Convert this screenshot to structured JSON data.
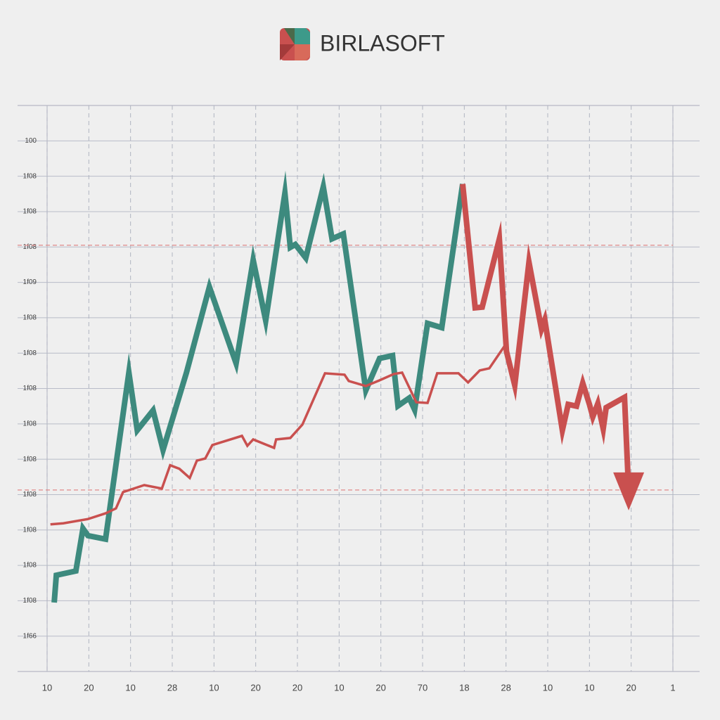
{
  "chart_data": {
    "type": "line",
    "title": "BIRLASOFT",
    "xlim": [
      0,
      15
    ],
    "xticks": [
      {
        "value": 0,
        "label": "10"
      },
      {
        "value": 1,
        "label": "20"
      },
      {
        "value": 2,
        "label": "10"
      },
      {
        "value": 3,
        "label": "28"
      },
      {
        "value": 4,
        "label": "10"
      },
      {
        "value": 5,
        "label": "20"
      },
      {
        "value": 6,
        "label": "20"
      },
      {
        "value": 7,
        "label": "10"
      },
      {
        "value": 8,
        "label": "20"
      },
      {
        "value": 9,
        "label": "70"
      },
      {
        "value": 10,
        "label": "18"
      },
      {
        "value": 11,
        "label": "28"
      },
      {
        "value": 12,
        "label": "10"
      },
      {
        "value": 13,
        "label": "10"
      },
      {
        "value": 14,
        "label": "20"
      },
      {
        "value": 15,
        "label": "1"
      }
    ],
    "ylim": [
      0,
      16
    ],
    "yticks": [
      {
        "value": 1,
        "label": "1f66"
      },
      {
        "value": 2,
        "label": "1f08"
      },
      {
        "value": 3,
        "label": "1f08"
      },
      {
        "value": 4,
        "label": "1f08"
      },
      {
        "value": 5,
        "label": "1f08"
      },
      {
        "value": 6,
        "label": "1f08"
      },
      {
        "value": 7,
        "label": "1f08"
      },
      {
        "value": 8,
        "label": "1f08"
      },
      {
        "value": 9,
        "label": "1f08"
      },
      {
        "value": 10,
        "label": "1f08"
      },
      {
        "value": 11,
        "label": "1f09"
      },
      {
        "value": 12,
        "label": "1f08"
      },
      {
        "value": 13,
        "label": "1f08"
      },
      {
        "value": 14,
        "label": "1f08"
      },
      {
        "value": 15,
        "label": "100"
      }
    ],
    "grid": true,
    "reference_lines": [
      12.05,
      5.13
    ],
    "reference_color": "#e08a8a",
    "series": [
      {
        "color": "#3d8a7e",
        "x": [
          0.17,
          0.22,
          0.69,
          0.86,
          0.98,
          1.4,
          1.96,
          2.16,
          2.54,
          2.78,
          3.34,
          3.89,
          4.53,
          4.94,
          5.24,
          5.7,
          5.83,
          5.95,
          6.2,
          6.62,
          6.83,
          7.1,
          7.64,
          7.97,
          8.28,
          8.41,
          8.68,
          8.81,
          9.12,
          9.46,
          9.96
        ],
        "values": [
          1.95,
          2.72,
          2.84,
          4.04,
          3.84,
          3.74,
          8.45,
          6.82,
          7.38,
          6.26,
          8.45,
          10.87,
          8.71,
          11.63,
          9.92,
          13.52,
          11.99,
          12.07,
          11.69,
          13.7,
          12.23,
          12.37,
          7.95,
          8.85,
          8.93,
          7.51,
          7.73,
          7.4,
          9.84,
          9.72,
          13.78
        ]
      },
      {
        "color": "#c9504f",
        "end_arrow": true,
        "x": [
          9.96,
          10.26,
          10.43,
          10.84,
          11.01,
          11.21,
          11.55,
          11.85,
          11.93,
          12.35,
          12.49,
          12.69,
          12.84,
          13.0,
          13.08,
          13.2,
          13.33,
          13.4,
          13.84,
          13.94
        ],
        "values": [
          13.78,
          10.28,
          10.3,
          12.23,
          9.05,
          8.09,
          11.57,
          9.68,
          9.94,
          6.82,
          7.55,
          7.5,
          8.15,
          7.55,
          7.2,
          7.57,
          6.86,
          7.46,
          7.75,
          5.07
        ]
      },
      {
        "color": "#c9504f",
        "x": [
          0.08,
          0.39,
          0.98,
          1.4,
          1.65,
          1.82,
          2.33,
          2.75,
          2.95,
          3.17,
          3.42,
          3.59,
          3.79,
          3.96,
          4.67,
          4.8,
          4.94,
          5.44,
          5.49,
          5.83,
          6.12,
          6.66,
          7.13,
          7.23,
          7.64,
          7.97,
          8.31,
          8.51,
          8.85,
          9.12,
          9.35,
          9.86,
          10.09,
          10.37,
          10.6,
          11.01
        ],
        "values": [
          4.16,
          4.19,
          4.31,
          4.47,
          4.61,
          5.07,
          5.27,
          5.17,
          5.83,
          5.73,
          5.47,
          5.96,
          6.02,
          6.4,
          6.66,
          6.38,
          6.56,
          6.32,
          6.56,
          6.6,
          6.98,
          8.43,
          8.39,
          8.21,
          8.07,
          8.23,
          8.41,
          8.45,
          7.61,
          7.59,
          8.43,
          8.43,
          8.17,
          8.51,
          8.57,
          9.28
        ]
      }
    ]
  }
}
